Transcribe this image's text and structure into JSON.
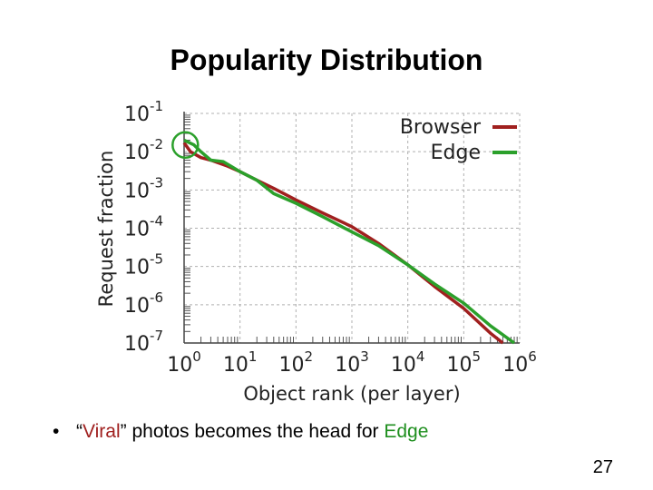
{
  "slide": {
    "title": "Popularity Distribution",
    "bullet": {
      "marker": "•",
      "open_quote": "“",
      "viral": "Viral",
      "close_quote": "”",
      "middle": " photos becomes the head for ",
      "edge": "Edge"
    },
    "page_number": "27"
  },
  "colors": {
    "browser": "#a0201f",
    "edge": "#2ba02b",
    "grid": "#b0b0b0",
    "highlight_circle": "#2ba02b"
  },
  "chart_data": {
    "type": "line",
    "xscale": "log",
    "yscale": "log",
    "xlabel": "Object rank (per layer)",
    "ylabel": "Request fraction",
    "xlim": [
      1,
      1000000
    ],
    "ylim": [
      1e-07,
      0.1
    ],
    "x_ticks": [
      {
        "base": "10",
        "exp": "0"
      },
      {
        "base": "10",
        "exp": "1"
      },
      {
        "base": "10",
        "exp": "2"
      },
      {
        "base": "10",
        "exp": "3"
      },
      {
        "base": "10",
        "exp": "4"
      },
      {
        "base": "10",
        "exp": "5"
      },
      {
        "base": "10",
        "exp": "6"
      }
    ],
    "y_ticks": [
      {
        "base": "10",
        "exp": "-1"
      },
      {
        "base": "10",
        "exp": "-2"
      },
      {
        "base": "10",
        "exp": "-3"
      },
      {
        "base": "10",
        "exp": "-4"
      },
      {
        "base": "10",
        "exp": "-5"
      },
      {
        "base": "10",
        "exp": "-6"
      },
      {
        "base": "10",
        "exp": "-7"
      }
    ],
    "grid": true,
    "legend": "top-right",
    "annotation": "circle around the head of the distribution (rank ~1, fraction ~0.01)",
    "series": [
      {
        "name": "Browser",
        "color": "#a0201f",
        "x": [
          1,
          1.3,
          2,
          3,
          6,
          10,
          20,
          40,
          100,
          300,
          1000,
          3000,
          10000,
          30000,
          100000,
          300000,
          500000
        ],
        "y": [
          0.017,
          0.01,
          0.007,
          0.006,
          0.0042,
          0.003,
          0.0018,
          0.0011,
          0.00055,
          0.00025,
          0.00011,
          4e-05,
          1.1e-05,
          3e-06,
          8e-07,
          1.8e-07,
          1e-07
        ]
      },
      {
        "name": "Edge",
        "color": "#2ba02b",
        "x": [
          1,
          1.5,
          2,
          3,
          5,
          10,
          20,
          40,
          100,
          300,
          1000,
          3000,
          10000,
          30000,
          100000,
          300000,
          800000
        ],
        "y": [
          0.02,
          0.015,
          0.01,
          0.006,
          0.0055,
          0.003,
          0.0018,
          0.0008,
          0.00045,
          0.0002,
          8e-05,
          3.5e-05,
          1.1e-05,
          3.5e-06,
          1.1e-06,
          2.8e-07,
          1e-07
        ]
      }
    ]
  }
}
